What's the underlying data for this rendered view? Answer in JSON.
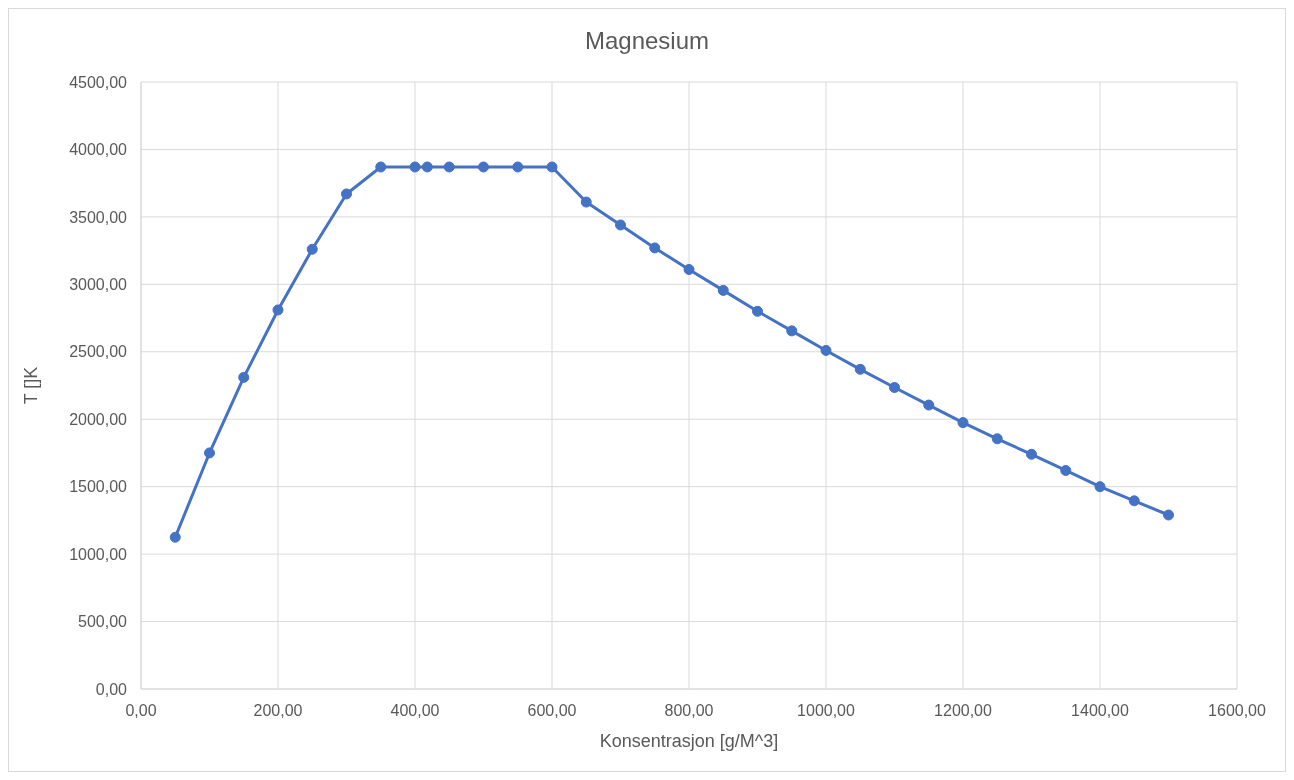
{
  "chart_data": {
    "type": "line",
    "title": "Magnesium",
    "xlabel": "Konsentrasjon [g/M^3]",
    "ylabel": "T []K",
    "x": [
      50,
      100,
      150,
      200,
      250,
      300,
      350,
      400,
      418,
      450,
      500,
      550,
      600,
      650,
      700,
      750,
      800,
      850,
      900,
      950,
      1000,
      1050,
      1100,
      1150,
      1200,
      1250,
      1300,
      1350,
      1400,
      1450,
      1500
    ],
    "series": [
      {
        "color": "#4472c4",
        "values": [
          1125,
          1750,
          2310,
          2810,
          3260,
          3670,
          3870,
          3870,
          3870,
          3870,
          3870,
          3870,
          3870,
          3610,
          3440,
          3270,
          3110,
          2955,
          2800,
          2655,
          2510,
          2370,
          2235,
          2105,
          1975,
          1855,
          1740,
          1620,
          1500,
          1395,
          1290
        ]
      }
    ],
    "xlim": [
      0,
      1600
    ],
    "ylim": [
      0,
      4500
    ],
    "xticks": [
      {
        "value": 0,
        "label": "0,00"
      },
      {
        "value": 200,
        "label": "200,00"
      },
      {
        "value": 400,
        "label": "400,00"
      },
      {
        "value": 600,
        "label": "600,00"
      },
      {
        "value": 800,
        "label": "800,00"
      },
      {
        "value": 1000,
        "label": "1000,00"
      },
      {
        "value": 1200,
        "label": "1200,00"
      },
      {
        "value": 1400,
        "label": "1400,00"
      },
      {
        "value": 1600,
        "label": "1600,00"
      }
    ],
    "yticks": [
      {
        "value": 0,
        "label": "0,00"
      },
      {
        "value": 500,
        "label": "500,00"
      },
      {
        "value": 1000,
        "label": "1000,00"
      },
      {
        "value": 1500,
        "label": "1500,00"
      },
      {
        "value": 2000,
        "label": "2000,00"
      },
      {
        "value": 2500,
        "label": "2500,00"
      },
      {
        "value": 3000,
        "label": "3000,00"
      },
      {
        "value": 3500,
        "label": "3500,00"
      },
      {
        "value": 4000,
        "label": "4000,00"
      },
      {
        "value": 4500,
        "label": "4500,00"
      }
    ],
    "grid": true,
    "marker": "circle"
  }
}
